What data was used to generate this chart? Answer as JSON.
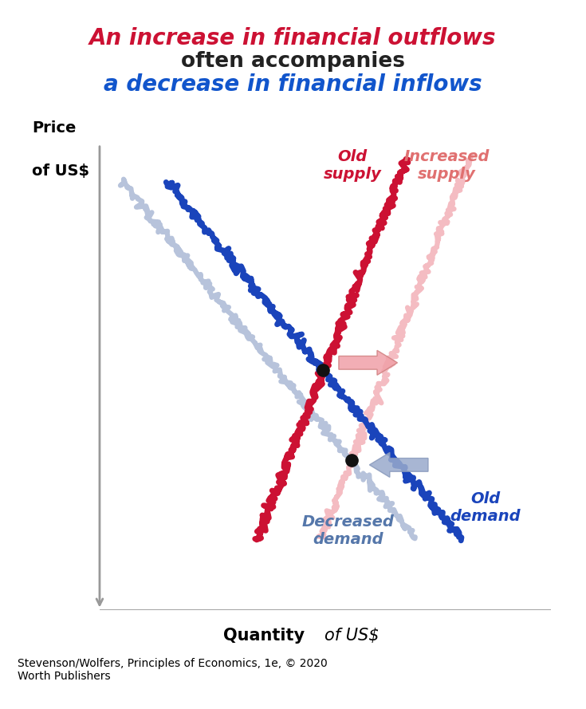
{
  "title_line1": "An increase in financial outflows",
  "title_line2": "often accompanies",
  "title_line3": "a decrease in financial inflows",
  "title_color1": "#cc1133",
  "title_color2": "#222222",
  "title_color3": "#1155cc",
  "ylabel_line1": "Price",
  "ylabel_line2": "of US$",
  "xlabel": "Quantity",
  "xlabel2": "of US$",
  "caption": "Stevenson/Wolfers, Principles of Economics, 1e, © 2020\nWorth Publishers",
  "old_supply_label": "Old\nsupply",
  "increased_supply_label": "Increased\nsupply",
  "old_demand_label": "Old\ndemand",
  "decreased_demand_label": "Decreased\ndemand",
  "supply_old_color": "#cc1133",
  "supply_new_color": "#f0a0a8",
  "demand_old_color": "#1a44bb",
  "demand_new_color": "#99aacc",
  "arrow_supply_color": "#f0a0a8",
  "arrow_demand_color": "#99aacc",
  "dot_color": "#111111",
  "axis_color": "#999999",
  "background": "#ffffff",
  "old_supply_label_color": "#cc1133",
  "increased_supply_label_color": "#e07070",
  "old_demand_label_color": "#1a44bb",
  "decreased_demand_label_color": "#5577aa"
}
